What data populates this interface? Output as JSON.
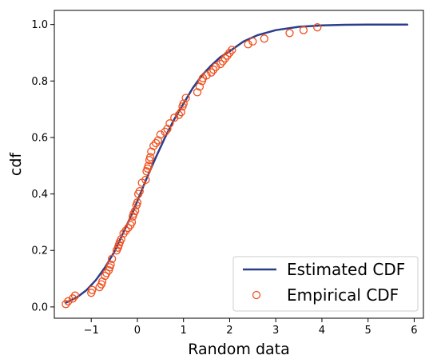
{
  "chart_data": {
    "type": "line+scatter",
    "xlabel": "Random data",
    "ylabel": "cdf",
    "xlim": [
      -1.8,
      6.2
    ],
    "ylim": [
      -0.04,
      1.05
    ],
    "xticks": [
      -1,
      0,
      1,
      2,
      3,
      4,
      5,
      6
    ],
    "xtick_labels": [
      "−1",
      "0",
      "1",
      "2",
      "3",
      "4",
      "5",
      "6"
    ],
    "yticks": [
      0.0,
      0.2,
      0.4,
      0.6,
      0.8,
      1.0
    ],
    "ytick_labels": [
      "0.0",
      "0.2",
      "0.4",
      "0.6",
      "0.8",
      "1.0"
    ],
    "grid": false,
    "legend": {
      "placement": "lower right",
      "entries": [
        {
          "label": "Estimated CDF",
          "kind": "line",
          "color": "#2b3e8a"
        },
        {
          "label": "Empirical CDF",
          "kind": "marker",
          "color": "#f0501e"
        }
      ]
    },
    "series": [
      {
        "name": "Estimated CDF",
        "kind": "line",
        "color": "#2b3e8a",
        "x": [
          -1.55,
          -1.3,
          -1.1,
          -0.9,
          -0.7,
          -0.5,
          -0.3,
          -0.1,
          0.0,
          0.2,
          0.4,
          0.6,
          0.8,
          1.0,
          1.2,
          1.4,
          1.6,
          1.8,
          2.0,
          2.3,
          2.6,
          3.0,
          3.5,
          4.0,
          4.5,
          5.0,
          5.5,
          5.85
        ],
        "y": [
          0.015,
          0.035,
          0.06,
          0.095,
          0.14,
          0.195,
          0.265,
          0.335,
          0.375,
          0.455,
          0.53,
          0.6,
          0.665,
          0.72,
          0.775,
          0.82,
          0.855,
          0.885,
          0.905,
          0.94,
          0.962,
          0.98,
          0.992,
          0.997,
          0.999,
          1.0,
          1.0,
          1.0
        ]
      },
      {
        "name": "Empirical CDF",
        "kind": "scatter",
        "color": "#f0501e",
        "x": [
          -1.55,
          -1.5,
          -1.4,
          -1.35,
          -1.0,
          -0.98,
          -0.82,
          -0.78,
          -0.76,
          -0.7,
          -0.67,
          -0.62,
          -0.6,
          -0.58,
          -0.55,
          -0.45,
          -0.42,
          -0.4,
          -0.38,
          -0.35,
          -0.3,
          -0.25,
          -0.2,
          -0.15,
          -0.12,
          -0.1,
          -0.08,
          -0.05,
          -0.02,
          0.0,
          0.02,
          0.05,
          0.1,
          0.18,
          0.2,
          0.22,
          0.24,
          0.26,
          0.28,
          0.3,
          0.35,
          0.4,
          0.45,
          0.5,
          0.6,
          0.65,
          0.7,
          0.8,
          0.9,
          0.95,
          0.98,
          1.0,
          1.05,
          1.3,
          1.35,
          1.4,
          1.42,
          1.5,
          1.6,
          1.65,
          1.7,
          1.8,
          1.85,
          1.9,
          1.95,
          2.0,
          2.05,
          2.4,
          2.5,
          2.75,
          3.3,
          3.6,
          3.9
        ],
        "y": [
          0.01,
          0.02,
          0.03,
          0.04,
          0.05,
          0.06,
          0.07,
          0.08,
          0.09,
          0.11,
          0.12,
          0.13,
          0.14,
          0.15,
          0.17,
          0.2,
          0.21,
          0.22,
          0.23,
          0.24,
          0.26,
          0.27,
          0.28,
          0.29,
          0.3,
          0.32,
          0.33,
          0.34,
          0.36,
          0.37,
          0.4,
          0.41,
          0.44,
          0.45,
          0.48,
          0.49,
          0.5,
          0.52,
          0.53,
          0.55,
          0.57,
          0.58,
          0.59,
          0.61,
          0.62,
          0.63,
          0.65,
          0.67,
          0.68,
          0.69,
          0.71,
          0.72,
          0.74,
          0.76,
          0.78,
          0.8,
          0.81,
          0.82,
          0.83,
          0.84,
          0.85,
          0.86,
          0.87,
          0.88,
          0.89,
          0.9,
          0.91,
          0.93,
          0.94,
          0.95,
          0.97,
          0.98,
          0.99
        ]
      }
    ]
  }
}
